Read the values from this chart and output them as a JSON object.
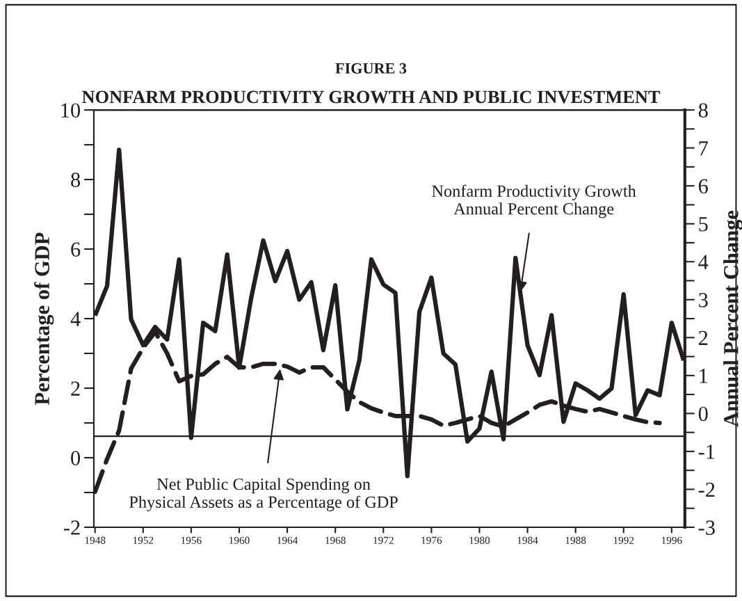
{
  "chart_data": {
    "type": "line",
    "title": "FIGURE 3",
    "subtitle": "NONFARM PRODUCTIVITY GROWTH AND PUBLIC INVESTMENT",
    "ylabel": "Percentage of GDP",
    "y2label": "Annual Percent Change",
    "x": [
      1948,
      1949,
      1950,
      1951,
      1952,
      1953,
      1954,
      1955,
      1956,
      1957,
      1958,
      1959,
      1960,
      1961,
      1962,
      1963,
      1964,
      1965,
      1966,
      1967,
      1968,
      1969,
      1970,
      1971,
      1972,
      1973,
      1974,
      1975,
      1976,
      1977,
      1978,
      1979,
      1980,
      1981,
      1982,
      1983,
      1984,
      1985,
      1986,
      1987,
      1988,
      1989,
      1990,
      1991,
      1992,
      1993,
      1994,
      1995,
      1996,
      1997
    ],
    "series": [
      {
        "color": "#231f20",
        "line_style": "solid",
        "axis": "y2",
        "values": [
          2.58,
          3.36,
          6.95,
          2.48,
          1.8,
          2.28,
          1.95,
          4.06,
          -0.64,
          2.39,
          2.17,
          4.19,
          1.21,
          3.05,
          4.56,
          3.49,
          4.28,
          3.0,
          3.46,
          1.67,
          3.38,
          0.11,
          1.4,
          4.06,
          3.4,
          3.18,
          -1.65,
          2.68,
          3.58,
          1.58,
          1.29,
          -0.74,
          -0.4,
          1.1,
          -0.68,
          4.1,
          1.8,
          1.01,
          2.59,
          -0.22,
          0.79,
          0.61,
          0.39,
          0.66,
          3.14,
          -0.04,
          0.61,
          0.48,
          2.39,
          1.4
        ]
      },
      {
        "color": "#231f20",
        "line_style": "dashed",
        "axis": "y",
        "values": [
          -0.98,
          -0.04,
          0.78,
          2.56,
          3.16,
          3.62,
          3.0,
          2.2,
          2.35,
          2.4,
          2.7,
          2.9,
          2.6,
          2.6,
          2.7,
          2.7,
          2.62,
          2.45,
          2.6,
          2.6,
          2.25,
          1.9,
          1.6,
          1.42,
          1.3,
          1.2,
          1.2,
          1.2,
          1.1,
          0.92,
          1.0,
          1.1,
          1.2,
          1.0,
          0.9,
          1.1,
          1.3,
          1.52,
          1.62,
          1.5,
          1.4,
          1.32,
          1.4,
          1.3,
          1.2,
          1.1,
          1.02,
          1.0,
          null,
          null
        ]
      }
    ],
    "xlim": [
      1947.9,
      1997.1
    ],
    "xticks": [
      1948,
      1952,
      1956,
      1960,
      1964,
      1968,
      1972,
      1976,
      1980,
      1984,
      1988,
      1992,
      1996
    ],
    "ylim": [
      -2,
      10
    ],
    "yticks": [
      -2,
      {
        "value": -1,
        "label": null
      },
      0,
      {
        "value": 1,
        "label": null
      },
      2,
      {
        "value": 3,
        "label": null
      },
      4,
      {
        "value": 5,
        "label": null
      },
      6,
      {
        "value": 7,
        "label": null
      },
      8,
      {
        "value": 9,
        "label": null
      },
      10
    ],
    "y2lim": [
      -3,
      8
    ],
    "y2ticks": [
      -3,
      {
        "value": -2.5,
        "label": null
      },
      -2,
      {
        "value": -1.5,
        "label": null
      },
      -1,
      {
        "value": -0.5,
        "label": null
      },
      0,
      {
        "value": 0.5,
        "label": null
      },
      1,
      {
        "value": 1.5,
        "label": null
      },
      2,
      {
        "value": 2.5,
        "label": null
      },
      3,
      {
        "value": 3.5,
        "label": null
      },
      4,
      {
        "value": 4.5,
        "label": null
      },
      5,
      {
        "value": 5.5,
        "label": null
      },
      6,
      {
        "value": 6.5,
        "label": null
      },
      7,
      {
        "value": 7.5,
        "label": null
      },
      8
    ],
    "ref_lines": [
      {
        "axis": "y2",
        "value": -0.6,
        "color": "#231f20"
      }
    ],
    "annotations": [
      {
        "text": "Nonfarm Productivity Growth\nAnnual Percent Change",
        "x": 1983.4,
        "y": 4.76
      },
      {
        "text": "Net Public Capital Spending on\nPhysical Assets as a Percentage of GDP",
        "x": 1963.4,
        "y": 2.55
      }
    ],
    "grid": false,
    "legend": false,
    "marker": "none"
  }
}
